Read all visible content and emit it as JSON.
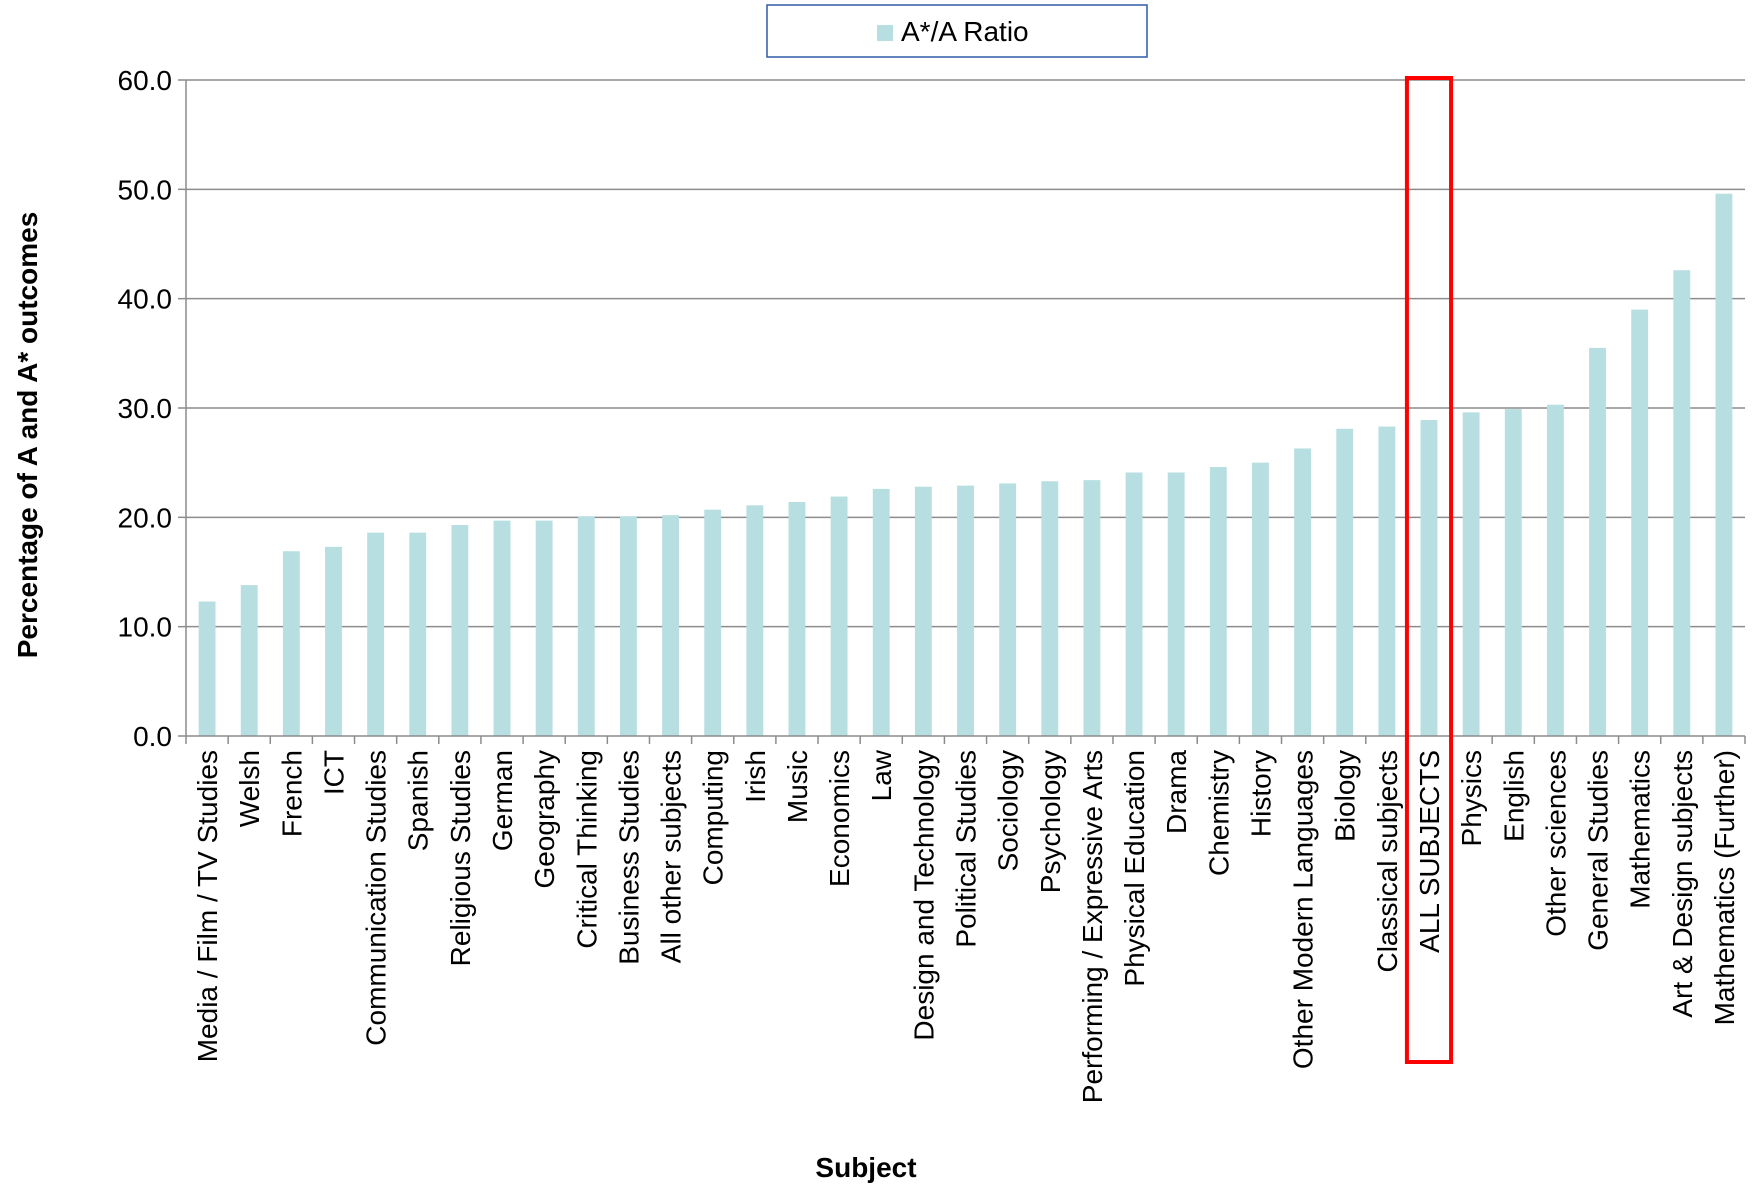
{
  "chart_data": {
    "type": "bar",
    "xlabel": "Subject",
    "ylabel": "Percentage of A and A* outcomes",
    "ylim": [
      0,
      60
    ],
    "yticks": [
      "0.0",
      "10.0",
      "20.0",
      "30.0",
      "40.0",
      "50.0",
      "60.0"
    ],
    "grid": true,
    "legend": {
      "placement": "top-center"
    },
    "highlight": {
      "category": "ALL SUBJECTS",
      "color": "#ff0000"
    },
    "categories": [
      "Media / Film / TV Studies",
      "Welsh",
      "French",
      "ICT",
      "Communication Studies",
      "Spanish",
      "Religious Studies",
      "German",
      "Geography",
      "Critical Thinking",
      "Business Studies",
      "All other subjects",
      "Computing",
      "Irish",
      "Music",
      "Economics",
      "Law",
      "Design and Technology",
      "Political Studies",
      "Sociology",
      "Psychology",
      "Performing / Expressive Arts",
      "Physical Education",
      "Drama",
      "Chemistry",
      "History",
      "Other Modern Languages",
      "Biology",
      "Classical subjects",
      "ALL SUBJECTS",
      "Physics",
      "English",
      "Other sciences",
      "General Studies",
      "Mathematics",
      "Art & Design subjects",
      "Mathematics (Further)"
    ],
    "series": [
      {
        "name": "A*/A Ratio",
        "color": "#b7dee0",
        "values": [
          12.3,
          13.8,
          16.9,
          17.3,
          18.6,
          18.6,
          19.3,
          19.7,
          19.7,
          20.1,
          20.1,
          20.2,
          20.7,
          21.1,
          21.4,
          21.9,
          22.6,
          22.8,
          22.9,
          23.1,
          23.3,
          23.4,
          24.1,
          24.1,
          24.6,
          25.0,
          26.3,
          28.1,
          28.3,
          28.9,
          29.6,
          29.9,
          30.3,
          35.5,
          39.0,
          42.6,
          49.6
        ]
      }
    ]
  }
}
